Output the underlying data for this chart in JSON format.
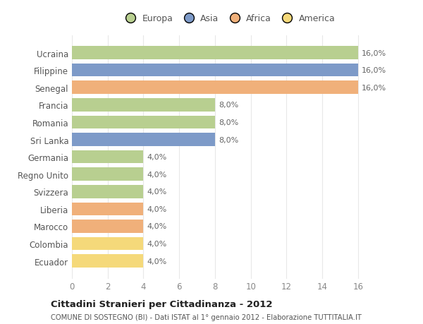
{
  "categories": [
    "Ecuador",
    "Colombia",
    "Marocco",
    "Liberia",
    "Svizzera",
    "Regno Unito",
    "Germania",
    "Sri Lanka",
    "Romania",
    "Francia",
    "Senegal",
    "Filippine",
    "Ucraina"
  ],
  "values": [
    4.0,
    4.0,
    4.0,
    4.0,
    4.0,
    4.0,
    4.0,
    8.0,
    8.0,
    8.0,
    16.0,
    16.0,
    16.0
  ],
  "colors": [
    "#f5d97a",
    "#f5d97a",
    "#f0b07a",
    "#f0b07a",
    "#b8cf90",
    "#b8cf90",
    "#b8cf90",
    "#7d9ac8",
    "#b8cf90",
    "#b8cf90",
    "#f0b07a",
    "#7d9ac8",
    "#b8cf90"
  ],
  "legend_labels": [
    "Europa",
    "Asia",
    "Africa",
    "America"
  ],
  "legend_colors": [
    "#b8cf90",
    "#7d9ac8",
    "#f0b07a",
    "#f5d97a"
  ],
  "title_bold": "Cittadini Stranieri per Cittadinanza - 2012",
  "subtitle": "COMUNE DI SOSTEGNO (BI) - Dati ISTAT al 1° gennaio 2012 - Elaborazione TUTTITALIA.IT",
  "xlim": [
    0,
    17.5
  ],
  "xticks": [
    0,
    2,
    4,
    6,
    8,
    10,
    12,
    14,
    16
  ],
  "background_color": "#ffffff",
  "grid_color": "#e8e8e8",
  "bar_height": 0.75
}
